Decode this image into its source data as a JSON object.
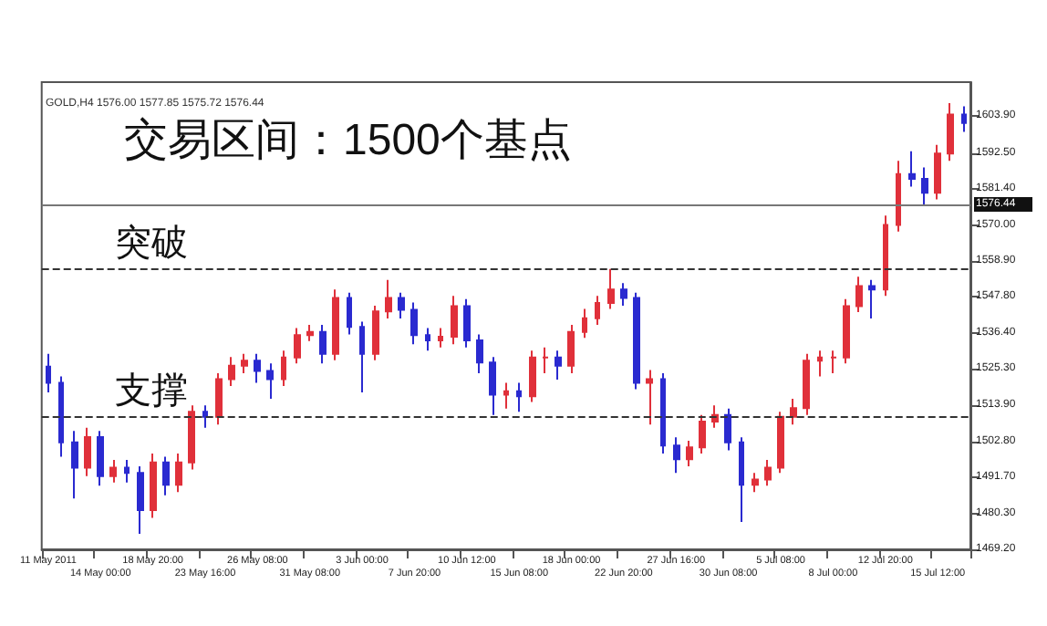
{
  "chart_data": {
    "type": "candlestick",
    "title": "交易区间：1500个基点",
    "annotations": [
      "GOLD,H4 1576.00 1577.85 1575.72 1576.44"
    ],
    "categories": [
      "11 May 2011",
      null,
      null,
      null,
      "14 May 00:00",
      null,
      null,
      null,
      "18 May 20:00",
      null,
      null,
      null,
      "23 May 16:00",
      null,
      null,
      null,
      "26 May 08:00",
      null,
      null,
      null,
      "31 May 08:00",
      null,
      null,
      null,
      "3 Jun 00:00",
      null,
      null,
      null,
      "7 Jun 20:00",
      null,
      null,
      null,
      "10 Jun 12:00",
      null,
      null,
      null,
      "15 Jun 08:00",
      null,
      null,
      null,
      "18 Jun 00:00",
      null,
      null,
      null,
      "22 Jun 20:00",
      null,
      null,
      null,
      "27 Jun 16:00",
      null,
      null,
      null,
      "30 Jun 08:00",
      null,
      null,
      null,
      "5 Jul 08:00",
      null,
      null,
      null,
      "8 Jul 00:00",
      null,
      null,
      null,
      "12 Jul 20:00",
      null,
      null,
      null,
      "15 Jul 12:00",
      null,
      null
    ],
    "ohlc": [
      [
        1526.0,
        1530.0,
        1518.0,
        1521.0
      ],
      [
        1521.0,
        1523.0,
        1498.0,
        1502.5
      ],
      [
        1502.5,
        1506.0,
        1485.0,
        1494.6
      ],
      [
        1494.6,
        1507.0,
        1492.0,
        1504.1
      ],
      [
        1504.1,
        1506.0,
        1489.0,
        1492.0
      ],
      [
        1492.0,
        1497.0,
        1490.0,
        1494.6
      ],
      [
        1494.6,
        1497.0,
        1490.0,
        1493.0
      ],
      [
        1493.0,
        1495.0,
        1474.0,
        1481.4
      ],
      [
        1481.4,
        1499.0,
        1479.0,
        1496.2
      ],
      [
        1496.2,
        1498.0,
        1486.0,
        1489.3
      ],
      [
        1489.3,
        1499.0,
        1487.0,
        1496.2
      ],
      [
        1496.2,
        1514.0,
        1494.0,
        1512.0
      ],
      [
        1512.0,
        1514.0,
        1507.0,
        1510.4
      ],
      [
        1510.4,
        1524.0,
        1508.0,
        1522.1
      ],
      [
        1522.1,
        1529.0,
        1520.0,
        1526.3
      ],
      [
        1526.3,
        1530.0,
        1524.0,
        1527.9
      ],
      [
        1527.9,
        1530.0,
        1521.0,
        1524.7
      ],
      [
        1524.7,
        1527.0,
        1516.0,
        1522.1
      ],
      [
        1522.1,
        1531.0,
        1520.0,
        1528.9
      ],
      [
        1528.9,
        1538.0,
        1527.0,
        1535.8
      ],
      [
        1535.8,
        1539.0,
        1534.0,
        1536.8
      ],
      [
        1536.8,
        1539.0,
        1527.0,
        1530.0
      ],
      [
        1530.0,
        1550.0,
        1528.0,
        1547.4
      ],
      [
        1547.4,
        1549.0,
        1536.0,
        1538.4
      ],
      [
        1538.4,
        1540.0,
        1518.0,
        1530.0
      ],
      [
        1530.0,
        1545.0,
        1528.0,
        1543.2
      ],
      [
        1543.2,
        1553.0,
        1541.0,
        1547.4
      ],
      [
        1547.4,
        1549.0,
        1541.0,
        1543.7
      ],
      [
        1543.7,
        1546.0,
        1533.0,
        1535.8
      ],
      [
        1535.8,
        1538.0,
        1531.0,
        1534.2
      ],
      [
        1534.2,
        1538.0,
        1532.0,
        1535.3
      ],
      [
        1535.3,
        1548.0,
        1533.0,
        1544.8
      ],
      [
        1544.8,
        1547.0,
        1532.0,
        1534.2
      ],
      [
        1534.2,
        1536.0,
        1524.0,
        1527.3
      ],
      [
        1527.3,
        1529.0,
        1511.0,
        1517.3
      ],
      [
        1517.3,
        1521.0,
        1513.0,
        1518.4
      ],
      [
        1518.4,
        1521.0,
        1512.0,
        1516.8
      ],
      [
        1516.8,
        1531.0,
        1515.0,
        1528.9
      ],
      [
        1528.9,
        1532.0,
        1524.0,
        1528.9
      ],
      [
        1528.9,
        1531.0,
        1522.0,
        1526.3
      ],
      [
        1526.3,
        1539.0,
        1524.0,
        1536.8
      ],
      [
        1536.8,
        1544.0,
        1535.0,
        1541.1
      ],
      [
        1541.1,
        1548.0,
        1539.0,
        1545.8
      ],
      [
        1545.8,
        1556.4,
        1544.0,
        1550.0
      ],
      [
        1550.0,
        1552.0,
        1545.0,
        1547.4
      ],
      [
        1547.4,
        1549.0,
        1519.0,
        1521.0
      ],
      [
        1521.0,
        1525.0,
        1508.0,
        1522.1
      ],
      [
        1522.1,
        1524.0,
        1499.0,
        1501.5
      ],
      [
        1501.5,
        1504.0,
        1493.0,
        1497.2
      ],
      [
        1497.2,
        1503.0,
        1495.0,
        1500.9
      ],
      [
        1500.9,
        1511.0,
        1499.0,
        1508.9
      ],
      [
        1508.9,
        1514.0,
        1507.0,
        1511.0
      ],
      [
        1511.0,
        1513.0,
        1500.0,
        1502.5
      ],
      [
        1502.5,
        1504.0,
        1477.7,
        1489.3
      ],
      [
        1489.3,
        1493.0,
        1487.0,
        1490.9
      ],
      [
        1490.9,
        1497.0,
        1489.0,
        1494.6
      ],
      [
        1494.6,
        1512.0,
        1493.0,
        1510.4
      ],
      [
        1510.4,
        1516.0,
        1508.0,
        1513.1
      ],
      [
        1513.1,
        1530.0,
        1511.0,
        1527.9
      ],
      [
        1527.9,
        1531.0,
        1523.0,
        1528.9
      ],
      [
        1528.9,
        1531.0,
        1524.0,
        1528.9
      ],
      [
        1528.9,
        1547.0,
        1527.0,
        1544.8
      ],
      [
        1544.8,
        1554.0,
        1543.0,
        1551.1
      ],
      [
        1551.1,
        1553.0,
        1541.0,
        1550.0
      ],
      [
        1550.0,
        1573.0,
        1548.0,
        1570.1
      ],
      [
        1570.1,
        1590.0,
        1568.0,
        1585.9
      ],
      [
        1585.9,
        1593.0,
        1582.0,
        1584.4
      ],
      [
        1584.4,
        1588.0,
        1576.0,
        1580.1
      ],
      [
        1580.1,
        1595.0,
        1578.0,
        1592.3
      ],
      [
        1592.3,
        1608.0,
        1590.0,
        1604.4
      ],
      [
        1604.4,
        1607.0,
        1599.0,
        1601.8
      ]
    ],
    "ylim": [
      1469.2,
      1614.5
    ],
    "yticks": [
      {
        "value": 1469.2,
        "label": "1469.20"
      },
      {
        "value": 1480.3,
        "label": "1480.30"
      },
      {
        "value": 1491.7,
        "label": "1491.70"
      },
      {
        "value": 1502.8,
        "label": "1502.80"
      },
      {
        "value": 1513.9,
        "label": "1513.90"
      },
      {
        "value": 1525.3,
        "label": "1525.30"
      },
      {
        "value": 1536.4,
        "label": "1536.40"
      },
      {
        "value": 1547.8,
        "label": "1547.80"
      },
      {
        "value": 1558.9,
        "label": "1558.90"
      },
      {
        "value": 1570.0,
        "label": "1570.00"
      },
      {
        "value": 1581.4,
        "label": "1581.40"
      },
      {
        "value": 1592.5,
        "label": "1592.50"
      },
      {
        "value": 1603.9,
        "label": "1603.90"
      }
    ],
    "ref_lines": [
      {
        "axis": "y",
        "value": 1556.4,
        "label": "突破",
        "color": "#333333",
        "line_style": "dashed"
      },
      {
        "axis": "y",
        "value": 1510.4,
        "label": "支撑",
        "color": "#333333",
        "line_style": "dashed"
      },
      {
        "axis": "y",
        "value": 1576.44,
        "label": "1576.44",
        "color": "#777777",
        "line_style": "solid"
      }
    ],
    "grid": false
  }
}
